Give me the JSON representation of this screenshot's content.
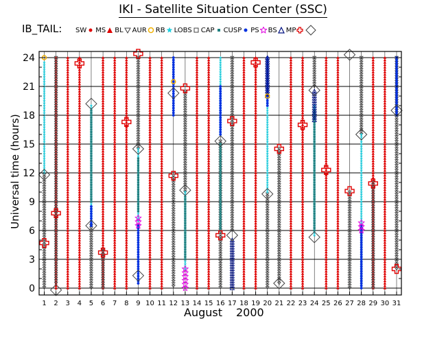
{
  "title": "IKI - Satellite Situation Center (SSC)",
  "legend_label": "IB_TAIL:",
  "legend": [
    {
      "label": "SW",
      "icon": "sw-dot-icon",
      "color": "#e00000"
    },
    {
      "label": "MS",
      "icon": "ms-triangle-icon",
      "color": "#e00000"
    },
    {
      "label": "BL",
      "icon": "bl-triangle-icon",
      "color": "#404040"
    },
    {
      "label": "AUR",
      "icon": "aur-circle-icon",
      "color": "#f0b000"
    },
    {
      "label": "RB",
      "icon": "rb-star-icon",
      "color": "#20d0e0"
    },
    {
      "label": "LOBS",
      "icon": "lobs-square-icon",
      "color": "#404040"
    },
    {
      "label": "CAP",
      "icon": "cap-square-icon",
      "color": "#208080"
    },
    {
      "label": "CUSP",
      "icon": "cusp-dot-icon",
      "color": "#0030e0"
    },
    {
      "label": "PS",
      "icon": "ps-star-icon",
      "color": "#e000e0"
    },
    {
      "label": "BS",
      "icon": "bs-triangle-icon",
      "color": "#001080"
    },
    {
      "label": "MP",
      "icon": "mp-cross-icon",
      "color": "#e00000"
    },
    {
      "label": "",
      "icon": "diamond-icon",
      "color": "#404040"
    }
  ],
  "colors": {
    "ms": "#e00000",
    "bl": "#404040",
    "rb": "#20d0e0",
    "cap": "#208080",
    "cusp": "#0030e0",
    "ps": "#e000e0",
    "bs": "#001080",
    "mp": "#e00000",
    "aur": "#f0b000",
    "diamond": "#404040"
  },
  "chart_data": {
    "type": "scatter",
    "title": "IKI - Satellite Situation Center (SSC)",
    "xlabel": "August",
    "year": "2000",
    "ylabel": "Universal time (hours)",
    "xlim": [
      1,
      31
    ],
    "ylim": [
      0,
      24
    ],
    "xticks": [
      "1",
      "2",
      "3",
      "4",
      "5",
      "6",
      "7",
      "8",
      "9",
      "10",
      "11",
      "12",
      "13",
      "14",
      "15",
      "16",
      "17",
      "18",
      "19",
      "20",
      "21",
      "22",
      "23",
      "24",
      "25",
      "26",
      "27",
      "28",
      "29",
      "30",
      "31"
    ],
    "yticks": [
      0,
      3,
      6,
      9,
      12,
      15,
      18,
      21,
      24
    ],
    "grid": true,
    "ms_days": [
      2,
      3,
      4,
      6,
      7,
      8,
      10,
      11,
      14,
      15,
      18,
      19,
      22,
      23,
      25,
      26,
      29,
      30
    ],
    "bl_segments": [
      {
        "day": 1,
        "from": 0,
        "to": 11.8
      },
      {
        "day": 2,
        "from": 0.5,
        "to": 24
      },
      {
        "day": 5,
        "from": 0,
        "to": 6.5
      },
      {
        "day": 6,
        "from": 0,
        "to": 4
      },
      {
        "day": 9,
        "from": 14.5,
        "to": 24
      },
      {
        "day": 12,
        "from": 0,
        "to": 11.7
      },
      {
        "day": 13,
        "from": 10,
        "to": 20.5
      },
      {
        "day": 16,
        "from": 0,
        "to": 15.3
      },
      {
        "day": 17,
        "from": 6,
        "to": 24
      },
      {
        "day": 20,
        "from": 0,
        "to": 9.8
      },
      {
        "day": 21,
        "from": 0.5,
        "to": 14.5
      },
      {
        "day": 24,
        "from": 21,
        "to": 24
      },
      {
        "day": 27,
        "from": 0,
        "to": 10
      },
      {
        "day": 28,
        "from": 16,
        "to": 24
      },
      {
        "day": 29,
        "from": 0,
        "to": 11
      },
      {
        "day": 31,
        "from": 2,
        "to": 24
      }
    ],
    "rb_segments": [
      {
        "day": 1,
        "from": 12,
        "to": 23.5
      },
      {
        "day": 5,
        "from": 7,
        "to": 19
      },
      {
        "day": 9,
        "from": 7,
        "to": 14.5
      },
      {
        "day": 13,
        "from": 2,
        "to": 10
      },
      {
        "day": 16,
        "from": 16,
        "to": 24
      },
      {
        "day": 20,
        "from": 10,
        "to": 20
      },
      {
        "day": 24,
        "from": 5.5,
        "to": 19
      },
      {
        "day": 28,
        "from": 6.5,
        "to": 16
      }
    ],
    "cap_segments": [
      {
        "day": 5,
        "from": 9,
        "to": 18.5
      },
      {
        "day": 9,
        "from": 8,
        "to": 13.5
      },
      {
        "day": 13,
        "from": 3,
        "to": 9.5
      },
      {
        "day": 16,
        "from": 6,
        "to": 15
      },
      {
        "day": 24,
        "from": 6,
        "to": 18.5
      },
      {
        "day": 28,
        "from": 0.5,
        "to": 6
      }
    ],
    "cusp_segments": [
      {
        "day": 5,
        "from": 6.5,
        "to": 8.5
      },
      {
        "day": 9,
        "from": 0.5,
        "to": 6.5
      },
      {
        "day": 12,
        "from": 18,
        "to": 24
      },
      {
        "day": 16,
        "from": 16,
        "to": 21
      },
      {
        "day": 20,
        "from": 19,
        "to": 24
      },
      {
        "day": 28,
        "from": 0,
        "to": 6.5
      },
      {
        "day": 31,
        "from": 18,
        "to": 24
      }
    ],
    "bs_segments": [
      {
        "day": 17,
        "from": 0,
        "to": 5
      },
      {
        "day": 20,
        "from": 20,
        "to": 24
      },
      {
        "day": 24,
        "from": 17.5,
        "to": 20.5
      }
    ],
    "ps_segments": [
      {
        "day": 9,
        "from": 6.5,
        "to": 7.5
      },
      {
        "day": 13,
        "from": 0,
        "to": 2
      },
      {
        "day": 28,
        "from": 6,
        "to": 6.8
      }
    ],
    "mp_points": [
      {
        "day": 1,
        "hour": 4.7
      },
      {
        "day": 2,
        "hour": 7.8
      },
      {
        "day": 4,
        "hour": 23.4
      },
      {
        "day": 6,
        "hour": 3.7
      },
      {
        "day": 8,
        "hour": 17.3
      },
      {
        "day": 9,
        "hour": 24.4
      },
      {
        "day": 12,
        "hour": 11.7
      },
      {
        "day": 13,
        "hour": 20.8
      },
      {
        "day": 16,
        "hour": 5.5
      },
      {
        "day": 17,
        "hour": 17.4
      },
      {
        "day": 19,
        "hour": 23.5
      },
      {
        "day": 21,
        "hour": 14.5
      },
      {
        "day": 23,
        "hour": 17
      },
      {
        "day": 25,
        "hour": 12.3
      },
      {
        "day": 27,
        "hour": 10.1
      },
      {
        "day": 29,
        "hour": 10.9
      },
      {
        "day": 31,
        "hour": 2
      }
    ],
    "diamond_points": [
      {
        "day": 1,
        "hour": 11.8
      },
      {
        "day": 2,
        "hour": -0.2
      },
      {
        "day": 5,
        "hour": 6.5
      },
      {
        "day": 5,
        "hour": 19.2
      },
      {
        "day": 9,
        "hour": 1.3
      },
      {
        "day": 9,
        "hour": 14.5
      },
      {
        "day": 12,
        "hour": 20.3
      },
      {
        "day": 13,
        "hour": 10.2
      },
      {
        "day": 16,
        "hour": 15.3
      },
      {
        "day": 17,
        "hour": 5.5
      },
      {
        "day": 20,
        "hour": 9.8
      },
      {
        "day": 21,
        "hour": 0.5
      },
      {
        "day": 24,
        "hour": 5.3
      },
      {
        "day": 24,
        "hour": 20.6
      },
      {
        "day": 27,
        "hour": 24.3
      },
      {
        "day": 28,
        "hour": 16
      },
      {
        "day": 31,
        "hour": 18.5
      }
    ],
    "aur_points": [
      {
        "day": 1,
        "hour": 24
      },
      {
        "day": 12,
        "hour": 21.5
      },
      {
        "day": 20,
        "hour": 20
      }
    ]
  }
}
